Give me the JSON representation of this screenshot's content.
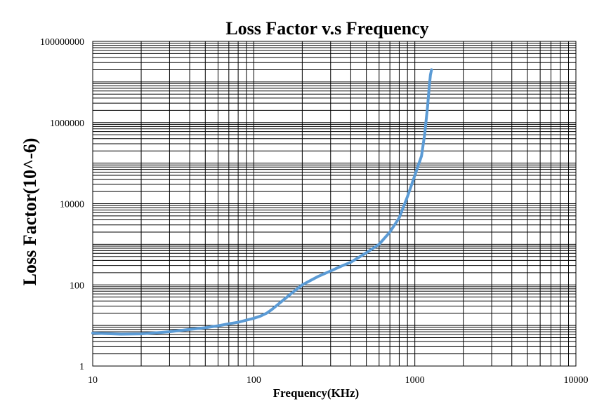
{
  "chart_data": {
    "type": "line",
    "title": "Loss Factor v.s Frequency",
    "xlabel": "Frequency(KHz)",
    "ylabel": "Loss Factor(10^-6)",
    "xscale": "log",
    "yscale": "log",
    "xlim": [
      10,
      10000
    ],
    "ylim": [
      1,
      100000000
    ],
    "x_ticks": [
      "10",
      "100",
      "1000",
      "10000"
    ],
    "y_ticks": [
      "1",
      "100",
      "10000",
      "1000000",
      "100000000"
    ],
    "grid": true,
    "legend": "none",
    "line_color": "#5B9BD5",
    "series": [
      {
        "x": [
          10,
          12,
          15,
          20,
          30,
          40,
          50,
          60,
          70,
          80,
          90,
          100,
          110,
          120,
          130,
          150,
          170,
          200,
          250,
          300,
          350,
          400,
          500,
          600,
          700,
          800,
          900,
          1000,
          1100,
          1150,
          1200,
          1230,
          1250,
          1270
        ],
        "y": [
          6.5,
          6.3,
          6.1,
          6.2,
          7,
          8,
          8.8,
          9.8,
          11,
          12,
          13.5,
          15,
          17,
          20,
          25,
          40,
          60,
          100,
          160,
          220,
          290,
          360,
          620,
          1000,
          2000,
          4500,
          15000,
          50000,
          150000,
          500000,
          2500000,
          8000000,
          15000000,
          20000000
        ]
      }
    ]
  }
}
